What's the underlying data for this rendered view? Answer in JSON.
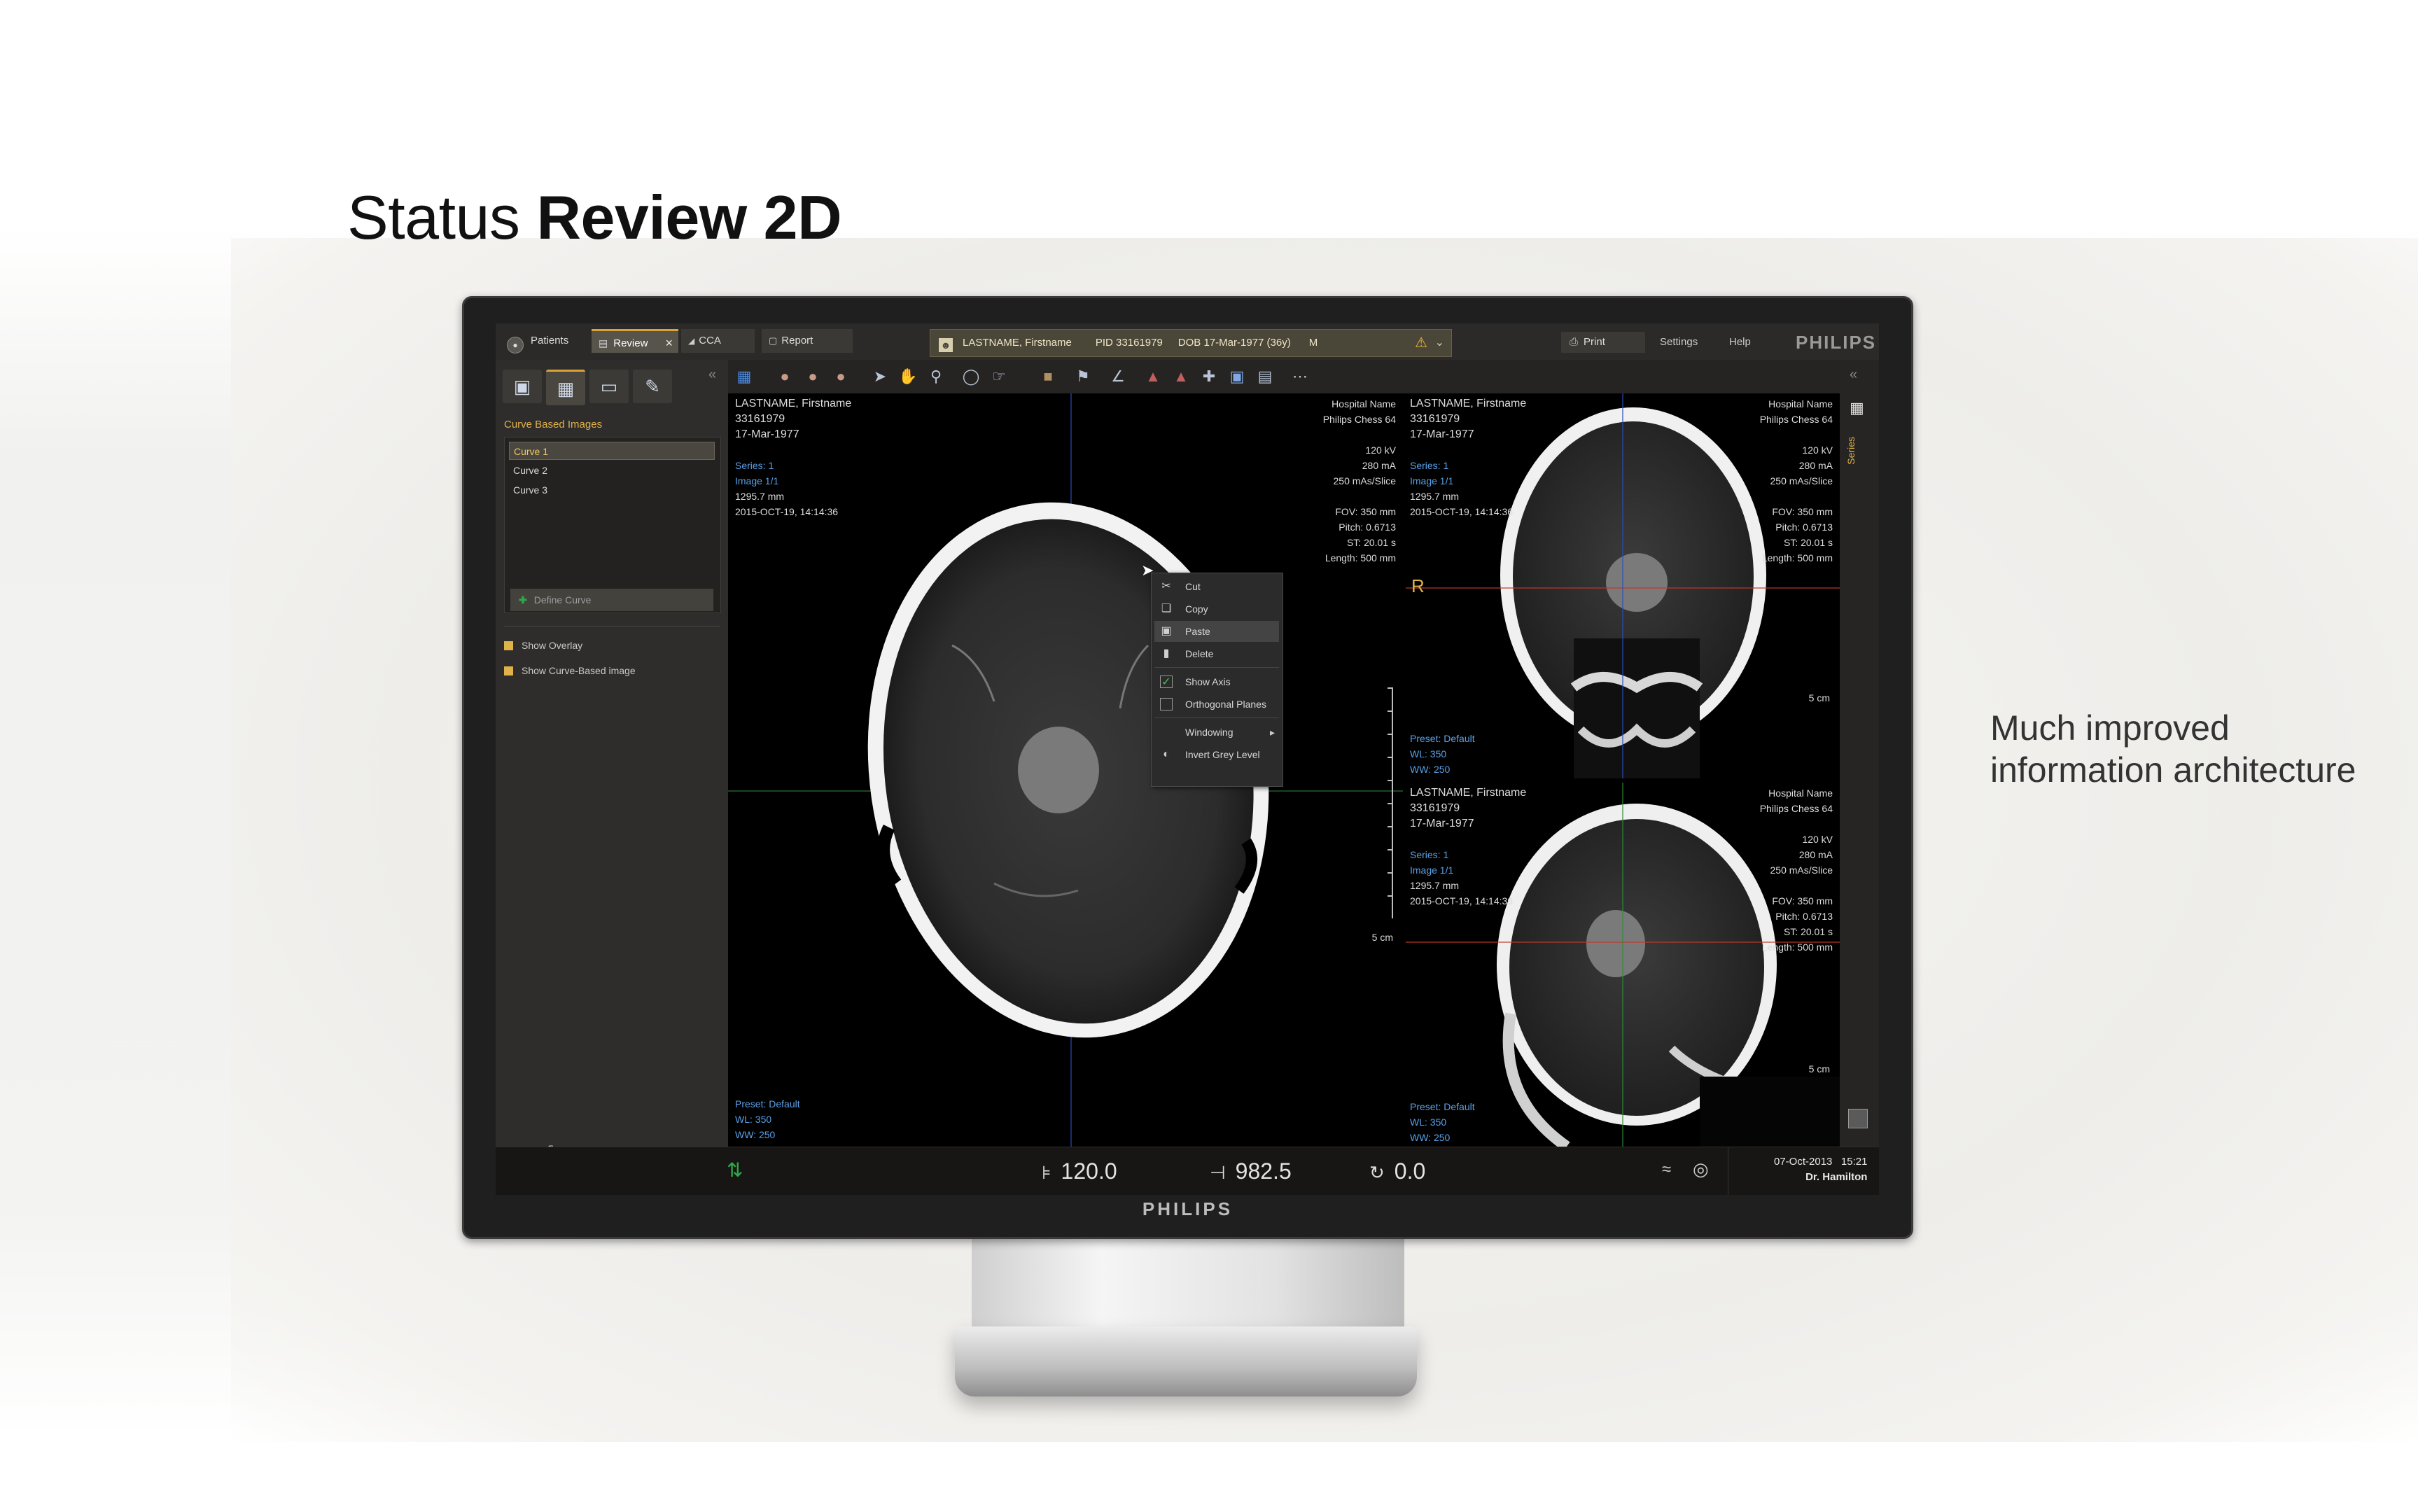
{
  "slide": {
    "title_normal": "Status ",
    "title_bold": "Review 2D",
    "note": "Much improved information architecture"
  },
  "monitor": {
    "bezel_brand": "PHILIPS"
  },
  "app": {
    "tabs": [
      {
        "label": "Patients"
      },
      {
        "label": "Review"
      },
      {
        "label": "CCA"
      },
      {
        "label": "Report"
      }
    ],
    "patient": {
      "name": "LASTNAME, Firstname",
      "pid": "PID 33161979",
      "dob": "DOB 17-Mar-1977 (36y)",
      "sex": "M"
    },
    "print_label": "Print",
    "settings_label": "Settings",
    "help_label": "Help",
    "brand": "PHILIPS"
  },
  "left_panel": {
    "title": "Curve Based Images",
    "curves": [
      "Curve 1",
      "Curve 2",
      "Curve 3"
    ],
    "define_curve": "Define Curve",
    "show_overlay": "Show Overlay",
    "show_curve_based": "Show Curve-Based image"
  },
  "viewports": {
    "main": {
      "tl": "LASTNAME, Firstname\n33161979\n17-Mar-1977",
      "tl_blue": "Series: 1\nImage 1/1",
      "tl_extra": "1295.7 mm\n2015-OCT-19, 14:14:36",
      "tr": "Hospital Name\nPhilips Chess 64\n\n120 kV\n280 mA\n250 mAs/Slice\n\nFOV: 350 mm\nPitch: 0.6713\nST: 20.01 s\nLength: 500 mm",
      "bl": "Preset: Default\nWL: 350\nWW: 250",
      "scale": "5 cm"
    },
    "upper": {
      "tl": "LASTNAME, Firstname\n33161979\n17-Mar-1977",
      "tl_blue": "Series: 1\nImage 1/1",
      "tl_extra": "1295.7 mm\n2015-OCT-19, 14:14:36",
      "tr": "Hospital Name\nPhilips Chess 64\n\n120 kV\n280 mA\n250 mAs/Slice\n\nFOV: 350 mm\nPitch: 0.6713\nST: 20.01 s\nLength: 500 mm",
      "bl": "Preset: Default\nWL: 350\nWW: 250",
      "orientation": "R",
      "scale": "5 cm"
    },
    "lower": {
      "tl": "LASTNAME, Firstname\n33161979\n17-Mar-1977",
      "tl_blue": "Series: 1\nImage 1/1",
      "tl_extra": "1295.7 mm\n2015-OCT-19, 14:14:36",
      "tr": "Hospital Name\nPhilips Chess 64\n\n120 kV\n280 mA\n250 mAs/Slice\n\nFOV: 350 mm\nPitch: 0.6713\nST: 20.01 s\nLength: 500 mm",
      "bl": "Preset: Default\nWL: 350\nWW: 250",
      "scale": "5 cm"
    }
  },
  "right_strip": {
    "series_label": "Series"
  },
  "context_menu": {
    "items": [
      "Cut",
      "Copy",
      "Paste",
      "Delete",
      "Show Axis",
      "Orthogonal Planes",
      "Windowing",
      "Invert Grey Level"
    ]
  },
  "statusbar": {
    "val1": "120.0",
    "val2": "982.5",
    "val3": "0.0",
    "date": "07-Oct-2013",
    "time": "15:21",
    "user": "Dr. Hamilton"
  },
  "colors": {
    "accent": "#d9a33a",
    "overlay_blue": "#5aa0e6",
    "crosshair_red": "#c0392b",
    "crosshair_green": "#2e8b3a",
    "crosshair_blue": "#2a4fb8"
  }
}
